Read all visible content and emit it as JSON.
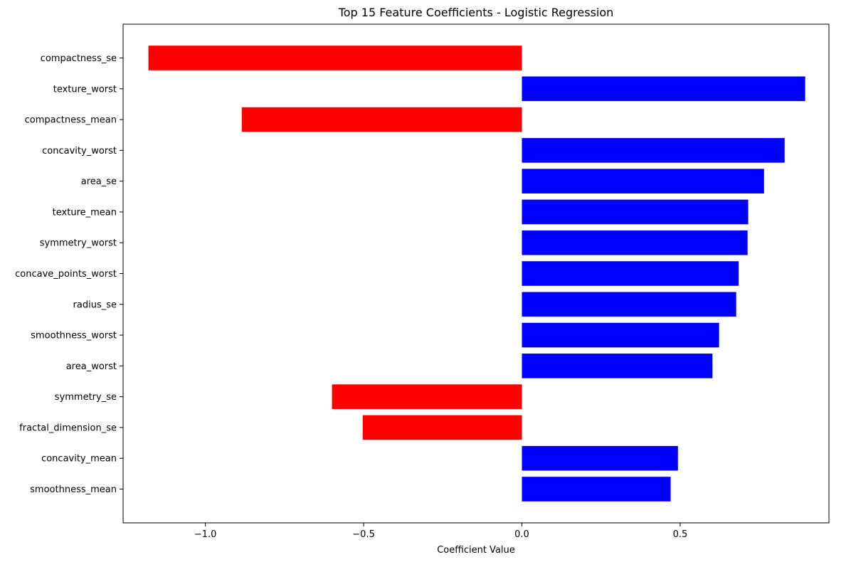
{
  "chart_data": {
    "type": "bar",
    "orientation": "horizontal",
    "title": "Top 15 Feature Coefficients - Logistic Regression",
    "xlabel": "Coefficient Value",
    "ylabel": "",
    "xlim": [
      -1.26,
      0.97
    ],
    "xticks": [
      -1.0,
      -0.5,
      0.0,
      0.5
    ],
    "xtick_labels": [
      "−1.0",
      "−0.5",
      "0.0",
      "0.5"
    ],
    "grid": false,
    "legend": "none",
    "colors": {
      "positive": "#0000ff",
      "negative": "#ff0000"
    },
    "categories": [
      "compactness_se",
      "texture_worst",
      "compactness_mean",
      "concavity_worst",
      "area_se",
      "texture_mean",
      "symmetry_worst",
      "concave_points_worst",
      "radius_se",
      "smoothness_worst",
      "area_worst",
      "symmetry_se",
      "fractal_dimension_se",
      "concavity_mean",
      "smoothness_mean"
    ],
    "values": [
      -1.18,
      0.895,
      -0.885,
      0.83,
      0.765,
      0.715,
      0.713,
      0.685,
      0.677,
      0.623,
      0.602,
      -0.6,
      -0.503,
      0.493,
      0.47
    ]
  }
}
